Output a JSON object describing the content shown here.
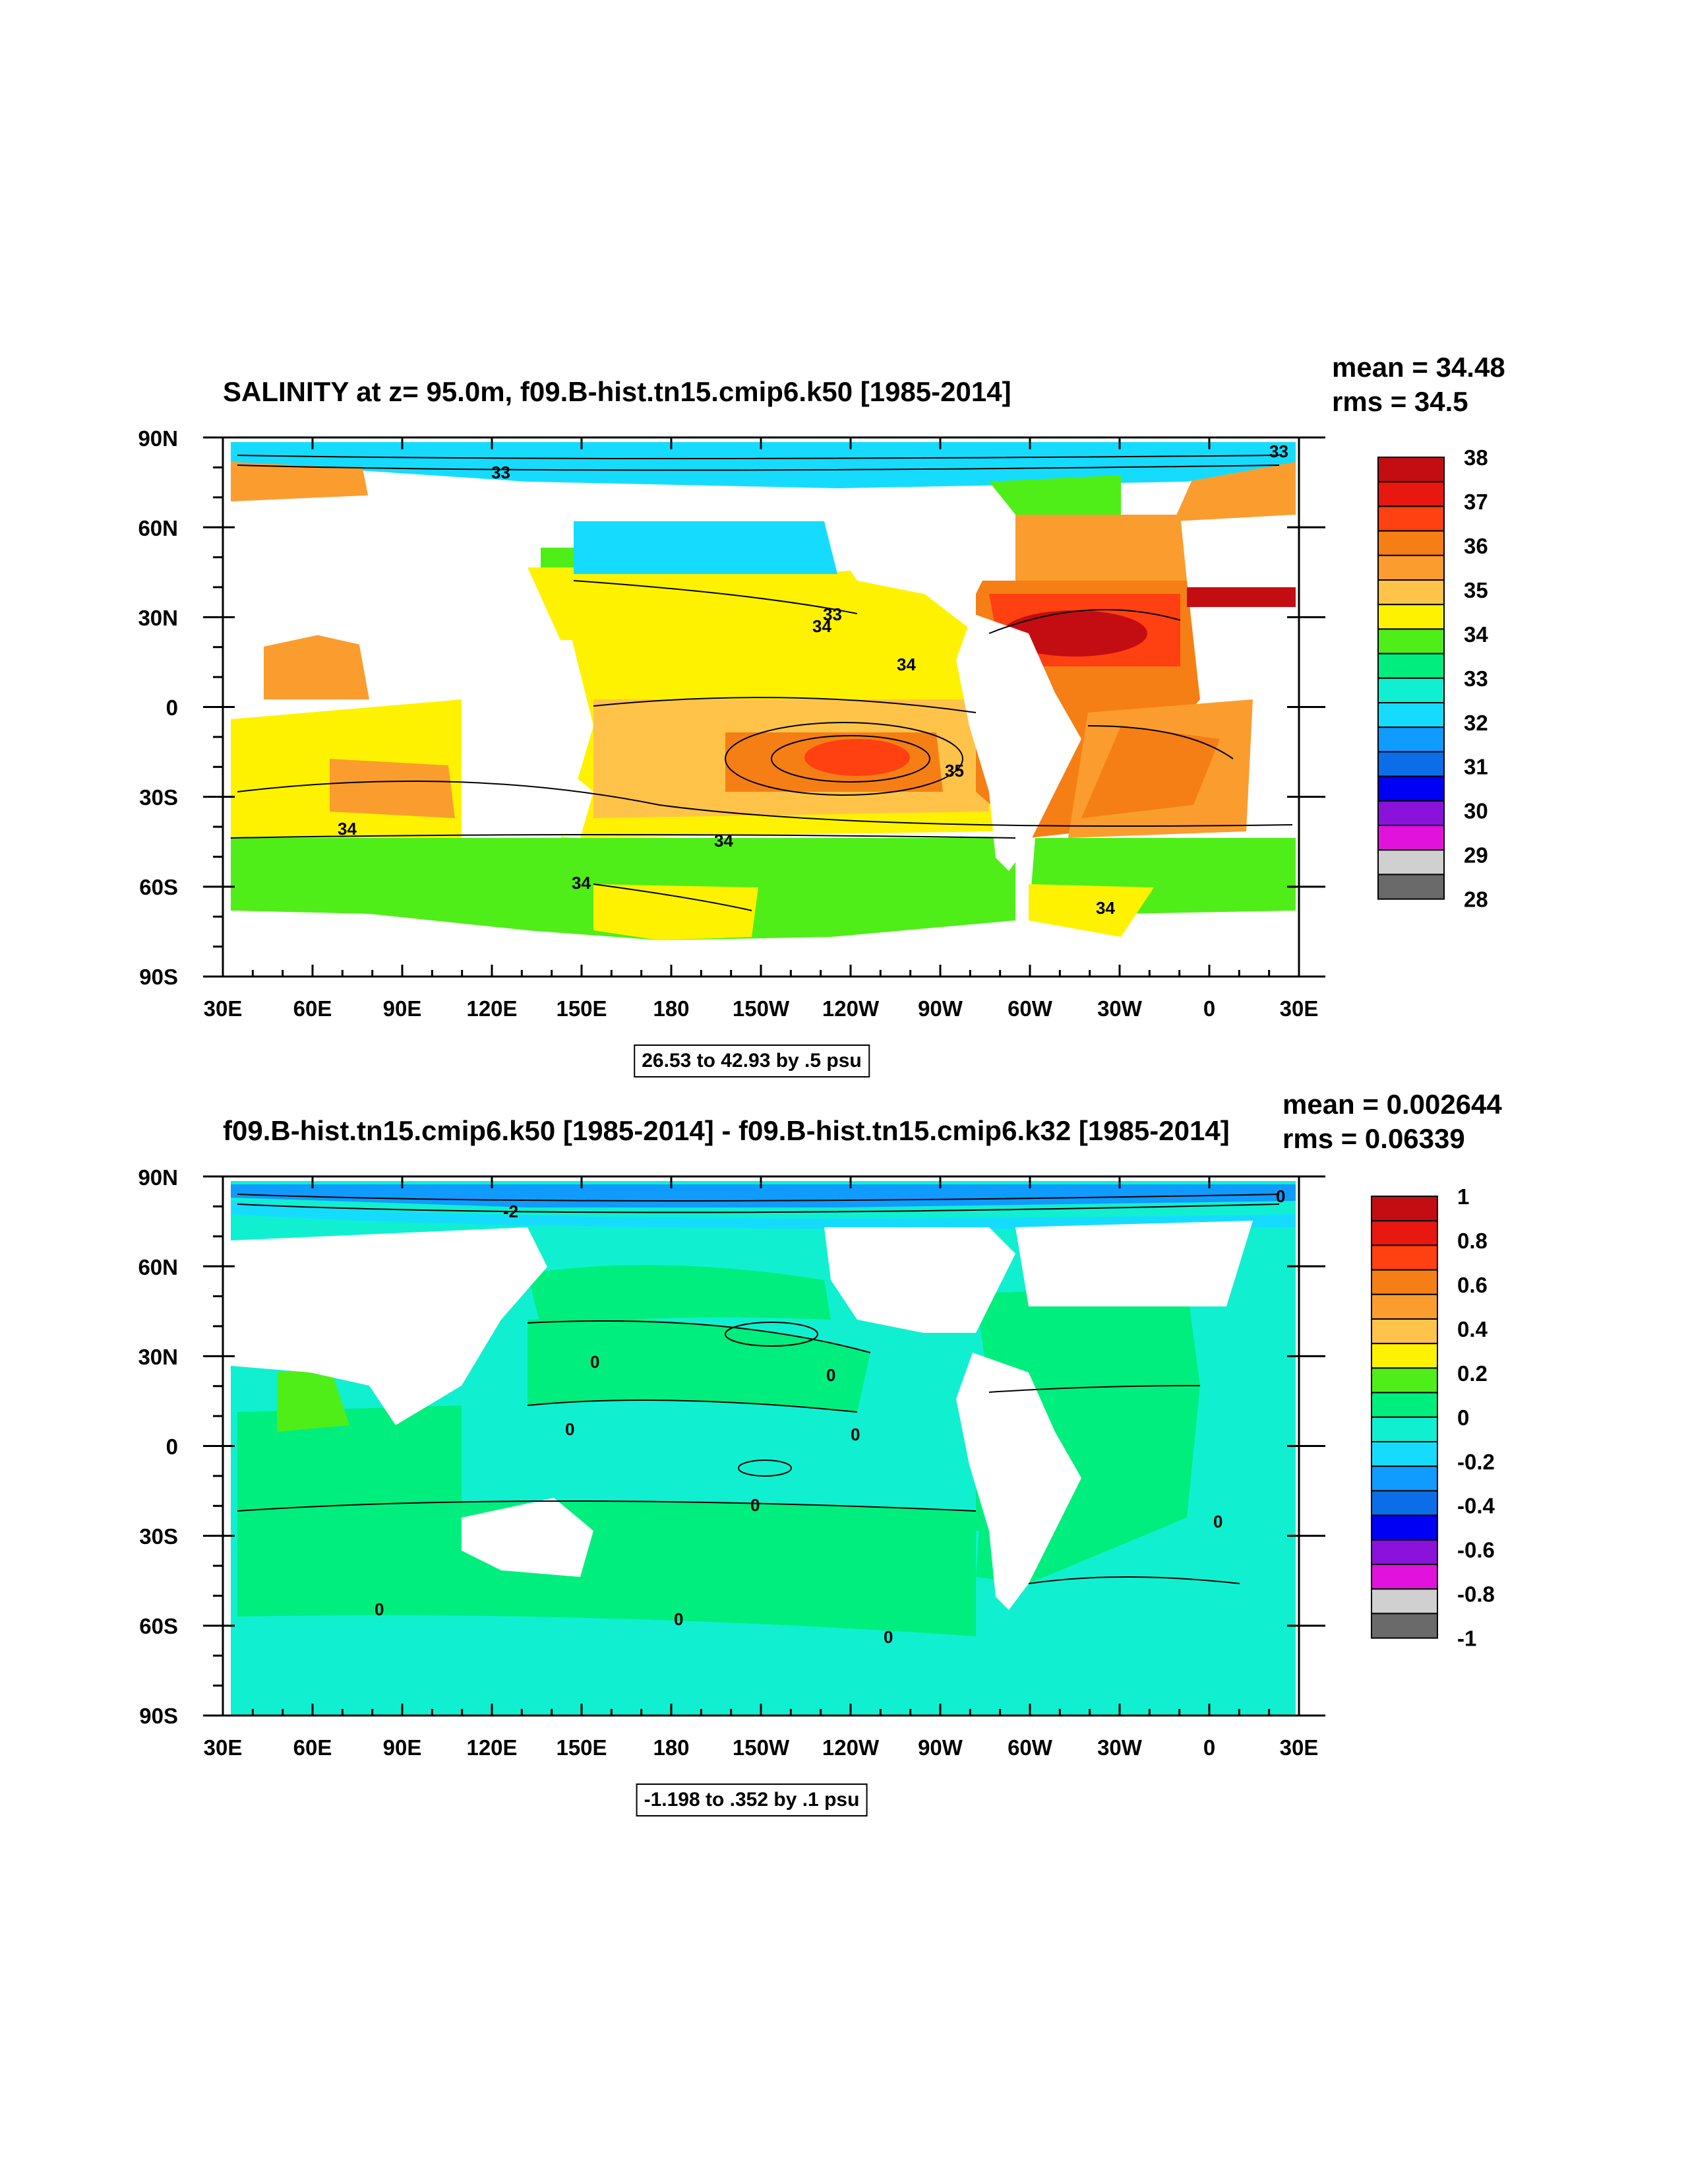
{
  "panels": [
    {
      "title": "SALINITY at z=  95.0m, f09.B-hist.tn15.cmip6.k50 [1985-2014]",
      "mean": "mean = 34.48",
      "rms": "rms = 34.5",
      "range_note": "26.53 to 42.93 by .5 psu",
      "colorbar_labels": [
        "38",
        "37",
        "36",
        "35",
        "34",
        "33",
        "32",
        "31",
        "30",
        "29",
        "28"
      ],
      "colorbar_colors": [
        "#c40d12",
        "#e8170f",
        "#ff4010",
        "#f57f15",
        "#fa9d2e",
        "#ffc34a",
        "#fff200",
        "#4fee18",
        "#00ee7e",
        "#10f0d0",
        "#15dcff",
        "#0f9bff",
        "#0b6ee8",
        "#0000f5",
        "#8a12db",
        "#e012dc",
        "#d0d0d0",
        "#6a6a6a"
      ],
      "contour_labels": [
        "33",
        "33",
        "33",
        "34",
        "34",
        "35",
        "34",
        "34",
        "34",
        "34"
      ],
      "region_colors": {
        "ocean_salty": "#fa9d2e",
        "ocean_mid": "#fff200",
        "ocean_fresh": "#4fee18",
        "arctic": "#15dcff",
        "atlantic_max": "#e8170f"
      }
    },
    {
      "title": "f09.B-hist.tn15.cmip6.k50 [1985-2014] - f09.B-hist.tn15.cmip6.k32 [1985-2014]",
      "mean": "mean = 0.002644",
      "rms": "rms = 0.06339",
      "range_note": "-1.198 to .352 by .1 psu",
      "colorbar_labels": [
        "1",
        "0.8",
        "0.6",
        "0.4",
        "0.2",
        "0",
        "-0.2",
        "-0.4",
        "-0.6",
        "-0.8",
        "-1"
      ],
      "colorbar_colors": [
        "#c40d12",
        "#e8170f",
        "#ff4010",
        "#f57f15",
        "#fa9d2e",
        "#ffc34a",
        "#fff200",
        "#4fee18",
        "#00ee7e",
        "#10f0d0",
        "#15dcff",
        "#0f9bff",
        "#0b6ee8",
        "#0000f5",
        "#8a12db",
        "#e012dc",
        "#d0d0d0",
        "#6a6a6a"
      ],
      "contour_labels": [
        "-2",
        "0",
        "0",
        "0",
        "0",
        "0",
        "0",
        "0",
        "0",
        "0",
        "0"
      ],
      "region_colors": {
        "ocean_pos": "#00ee7e",
        "ocean_neg": "#10f0d0",
        "arctic": "#0f9bff",
        "patch": "#4fee18"
      }
    }
  ],
  "lat_labels": [
    "90N",
    "60N",
    "30N",
    "0",
    "30S",
    "60S",
    "90S"
  ],
  "lon_labels": [
    "30E",
    "60E",
    "90E",
    "120E",
    "150E",
    "180",
    "150W",
    "120W",
    "90W",
    "60W",
    "30W",
    "0",
    "30E"
  ]
}
